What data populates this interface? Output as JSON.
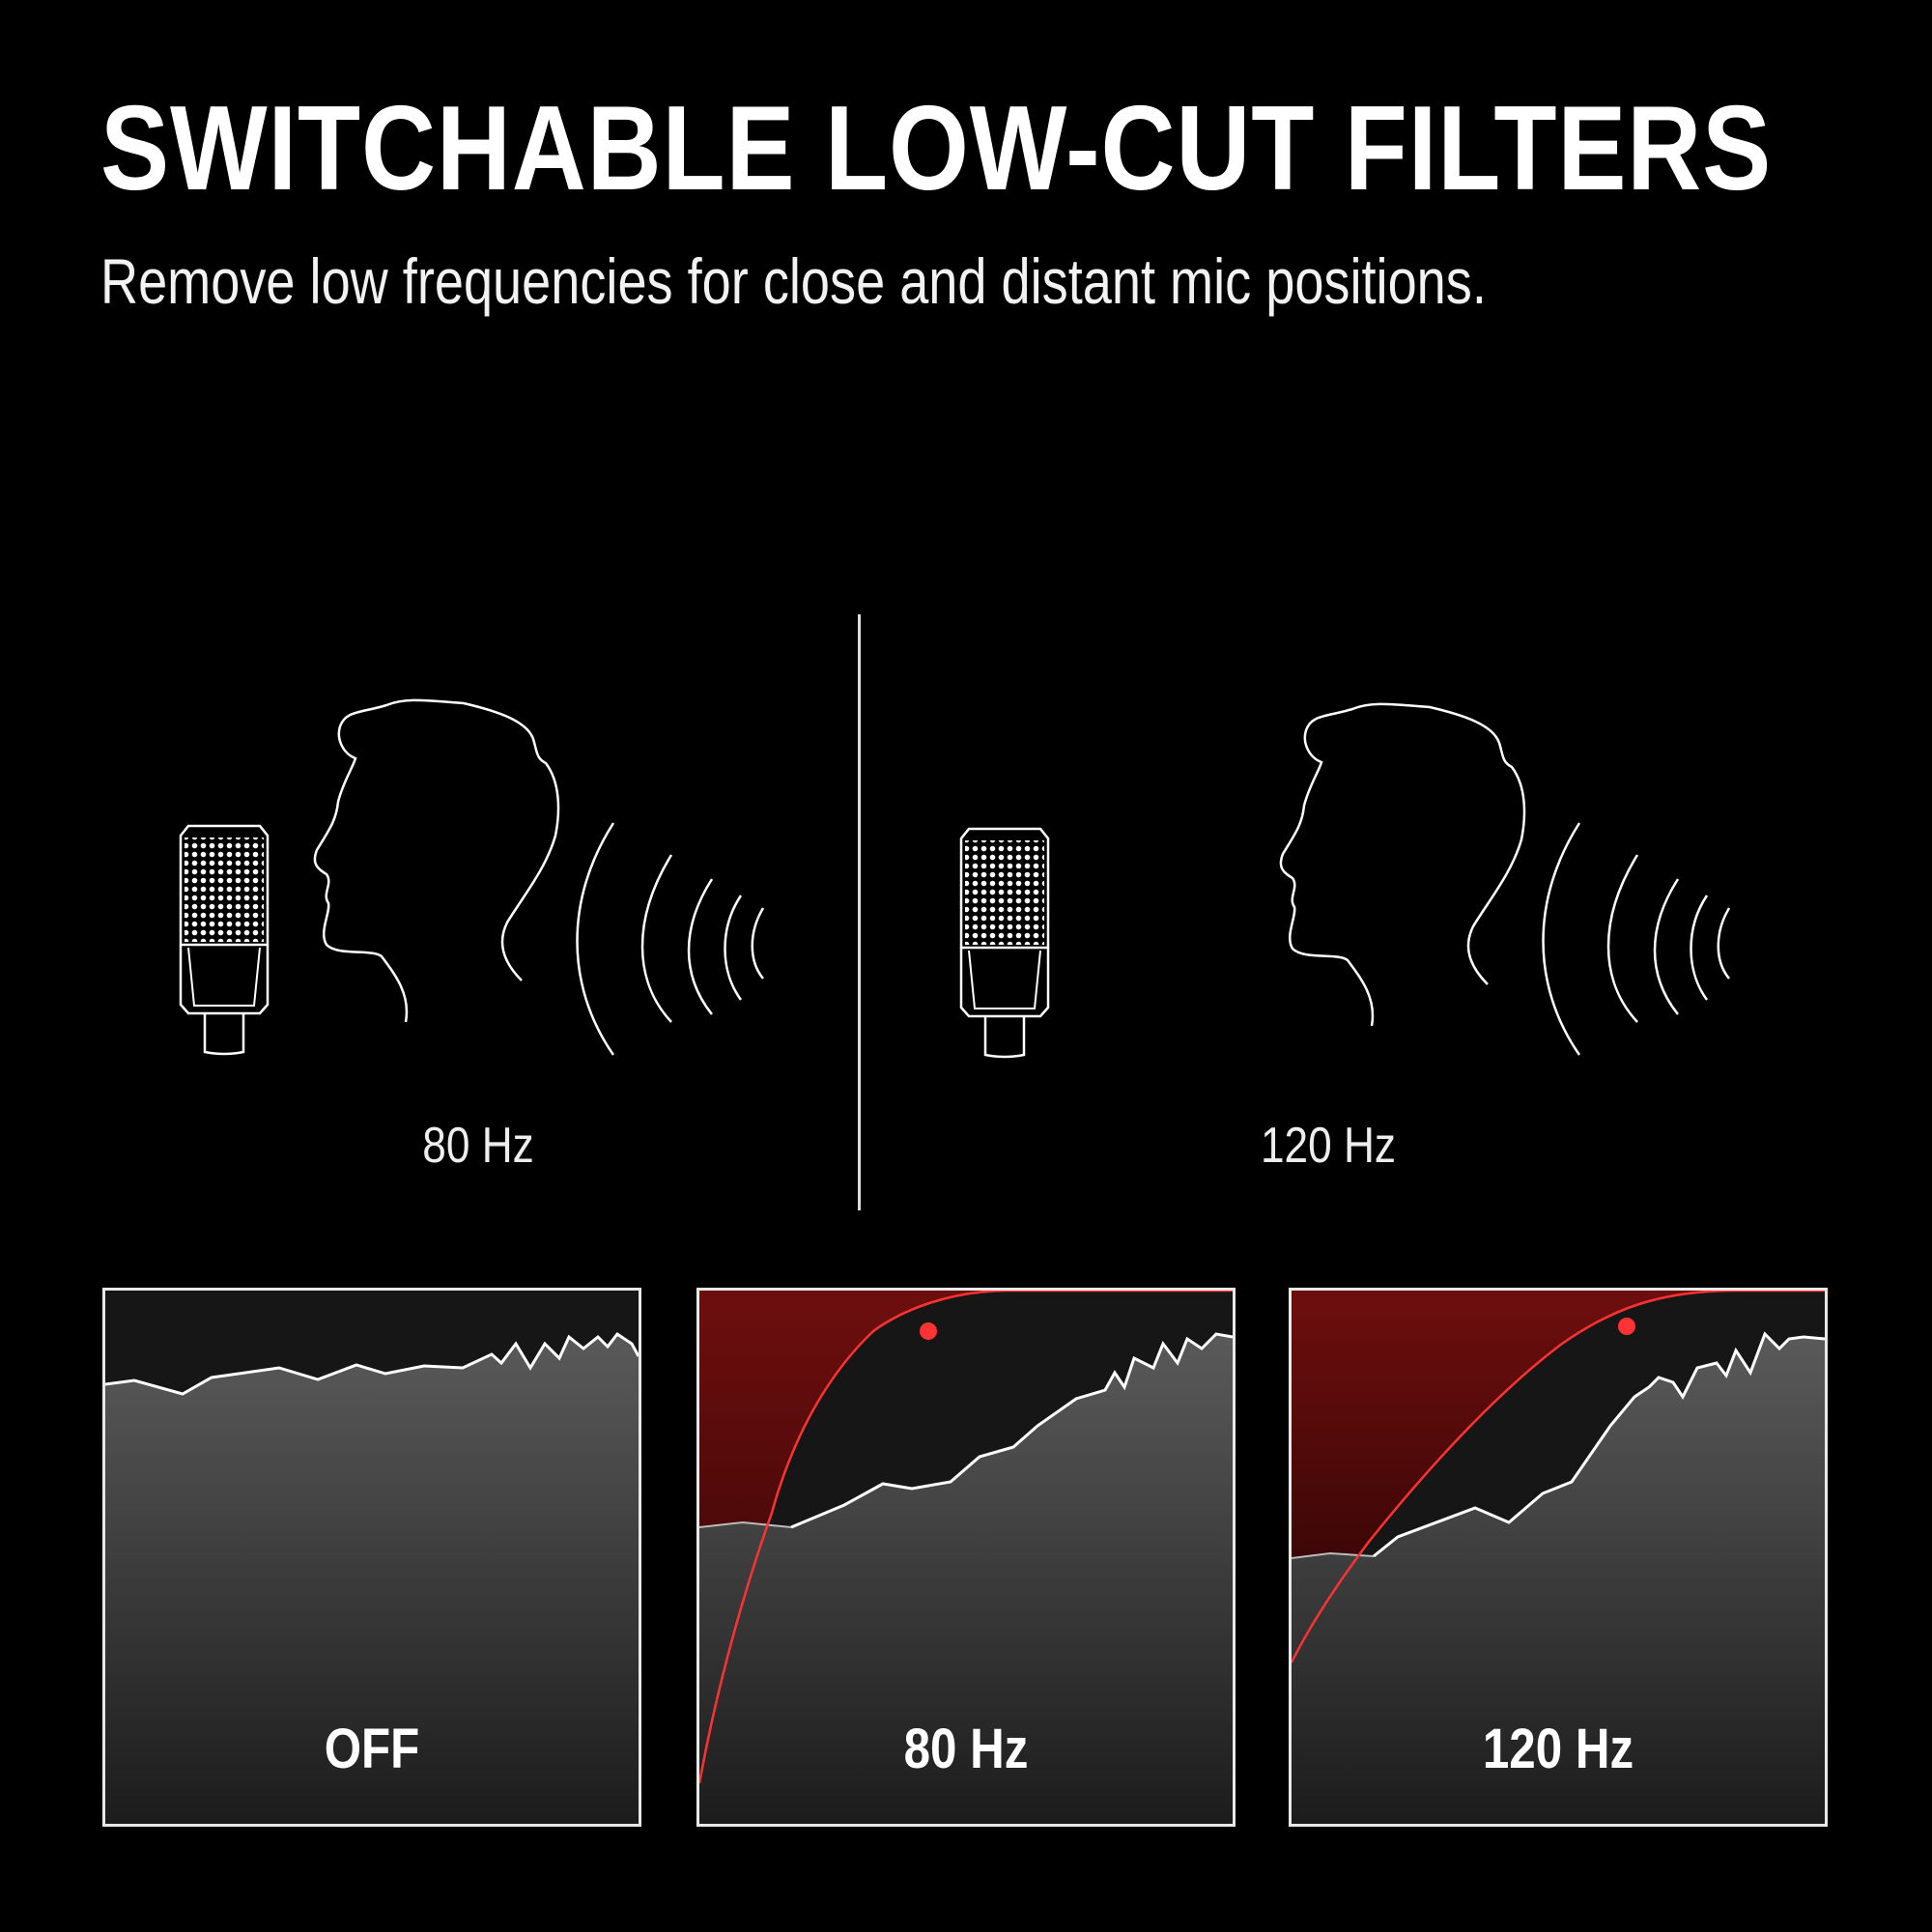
{
  "header": {
    "title": "SWITCHABLE LOW-CUT FILTERS",
    "subtitle": "Remove low frequencies for close and distant mic positions."
  },
  "illustrations": [
    {
      "caption": "80 Hz",
      "icons": [
        "microphone-icon",
        "head-profile-icon",
        "sound-waves-icon"
      ]
    },
    {
      "caption": "120 Hz",
      "icons": [
        "microphone-icon",
        "head-profile-icon",
        "sound-waves-icon"
      ]
    }
  ],
  "panels": [
    {
      "label": "OFF",
      "filter_active": false
    },
    {
      "label": "80 Hz",
      "filter_active": true
    },
    {
      "label": "120 Hz",
      "filter_active": true
    }
  ],
  "colors": {
    "background": "#000000",
    "filter_curve": "#ff3333",
    "filter_region": "#6a0d0d",
    "spectrum_line": "#ffffff"
  }
}
